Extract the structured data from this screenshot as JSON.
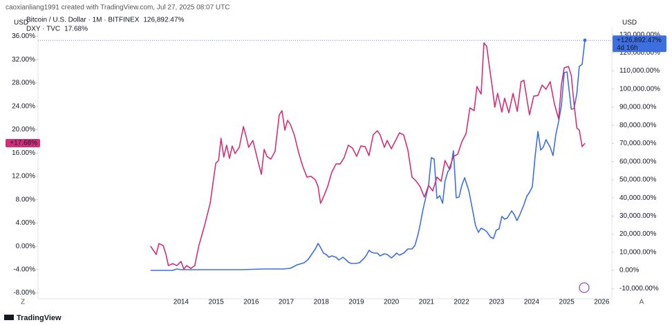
{
  "chart_data": {
    "type": "line",
    "header": "caoxianliang1991 created with TradingView.com, Jul 27, 2025 08:07 UTC",
    "y_label": "USD",
    "y2_label": "USD",
    "xlim": [
      2009.92,
      2026.19
    ],
    "xticks": [
      2014,
      2015,
      2016,
      2017,
      2018,
      2019,
      2020,
      2021,
      2022,
      2023,
      2024,
      2025,
      2026
    ],
    "ylim": [
      -9.0,
      36.9
    ],
    "yticks": [
      {
        "value": 36,
        "label": "36.00%"
      },
      {
        "value": 32,
        "label": "32.00%"
      },
      {
        "value": 28,
        "label": "28.00%"
      },
      {
        "value": 24,
        "label": "24.00%"
      },
      {
        "value": 20,
        "label": "20.00%"
      },
      {
        "value": 16,
        "label": "16.00%"
      },
      {
        "value": 12,
        "label": "12.00%"
      },
      {
        "value": 8,
        "label": "8.00%"
      },
      {
        "value": 4,
        "label": "4.00%"
      },
      {
        "value": 0,
        "label": "0.00%"
      },
      {
        "value": -4,
        "label": "-4.00%"
      },
      {
        "value": -8,
        "label": "-8.00%"
      }
    ],
    "y2lim": [
      -15640,
      131960
    ],
    "y2ticks": [
      {
        "value": 130000,
        "label": "130,000.00%"
      },
      {
        "value": 120000,
        "label": "120,000.00%"
      },
      {
        "value": 110000,
        "label": "110,000.00%"
      },
      {
        "value": 100000,
        "label": "100,000.00%"
      },
      {
        "value": 90000,
        "label": "90,000.00%"
      },
      {
        "value": 80000,
        "label": "80,000.00%"
      },
      {
        "value": 70000,
        "label": "70,000.00%"
      },
      {
        "value": 60000,
        "label": "60,000.00%"
      },
      {
        "value": 50000,
        "label": "50,000.00%"
      },
      {
        "value": 40000,
        "label": "40,000.00%"
      },
      {
        "value": 30000,
        "label": "30,000.00%"
      },
      {
        "value": 20000,
        "label": "20,000.00%"
      },
      {
        "value": 10000,
        "label": "10,000.00%"
      },
      {
        "value": 0,
        "label": "0.00%"
      },
      {
        "value": -10000,
        "label": "-10,000.00%"
      }
    ],
    "grid": false,
    "series": [
      {
        "name": "Bitcoin / U.S. Dollar · 1M · BITFINEX",
        "color": "#3d6fe0",
        "axis": "y2",
        "legend_value": "126,892.47%",
        "price_tag": "+126,892.47%",
        "countdown": "4d 16h",
        "x": [
          2013.13,
          2013.76,
          2013.88,
          2014.0,
          2014.75,
          2015.74,
          2016.33,
          2016.92,
          2017.12,
          2017.31,
          2017.51,
          2017.63,
          2017.75,
          2017.83,
          2017.91,
          2017.98,
          2018.06,
          2018.14,
          2018.22,
          2018.3,
          2018.42,
          2018.5,
          2018.62,
          2018.69,
          2018.77,
          2018.85,
          2018.97,
          2019.09,
          2019.21,
          2019.29,
          2019.36,
          2019.44,
          2019.52,
          2019.6,
          2019.68,
          2019.8,
          2019.88,
          2020.0,
          2020.07,
          2020.15,
          2020.23,
          2020.35,
          2020.47,
          2020.59,
          2020.67,
          2020.75,
          2020.82,
          2020.9,
          2020.98,
          2021.06,
          2021.14,
          2021.22,
          2021.3,
          2021.38,
          2021.46,
          2021.53,
          2021.61,
          2021.69,
          2021.77,
          2021.85,
          2021.93,
          2022.01,
          2022.09,
          2022.21,
          2022.32,
          2022.4,
          2022.48,
          2022.56,
          2022.64,
          2022.72,
          2022.83,
          2022.91,
          2022.99,
          2023.07,
          2023.15,
          2023.23,
          2023.31,
          2023.43,
          2023.5,
          2023.58,
          2023.66,
          2023.78,
          2023.86,
          2023.94,
          2024.02,
          2024.1,
          2024.18,
          2024.26,
          2024.33,
          2024.41,
          2024.53,
          2024.61,
          2024.69,
          2024.77,
          2024.85,
          2024.93,
          2025.01,
          2025.05,
          2025.13,
          2025.21,
          2025.29,
          2025.36,
          2025.44,
          2025.52
        ],
        "values": [
          0,
          0,
          760,
          380,
          380,
          380,
          760,
          760,
          1140,
          3050,
          4200,
          6100,
          9540,
          11820,
          14880,
          12590,
          9540,
          8770,
          7250,
          8010,
          7250,
          5720,
          7250,
          6100,
          4580,
          3810,
          3810,
          4200,
          6480,
          8390,
          11060,
          9920,
          9540,
          9540,
          8010,
          9150,
          8770,
          6870,
          8010,
          9540,
          8390,
          9540,
          11820,
          11820,
          13730,
          19070,
          25170,
          33560,
          40050,
          46910,
          62170,
          61410,
          39660,
          41190,
          37000,
          49200,
          54540,
          56450,
          65980,
          40050,
          40430,
          46910,
          51110,
          43860,
          32800,
          24790,
          20980,
          23270,
          22500,
          21360,
          18310,
          17540,
          22120,
          22880,
          29750,
          28220,
          28990,
          32800,
          30890,
          27460,
          30510,
          36230,
          40810,
          43100,
          46150,
          62930,
          76660,
          66360,
          67890,
          72080,
          67890,
          63310,
          74750,
          82000,
          91150,
          109080,
          109460,
          102600,
          88860,
          89250,
          97640,
          112510,
          113650,
          126892.47
        ]
      },
      {
        "name": "DXY · TVC",
        "color": "#d0307a",
        "axis": "y",
        "legend_value": "17.68%",
        "price_tag": "+17.68%",
        "x": [
          2013.13,
          2013.29,
          2013.37,
          2013.49,
          2013.57,
          2013.64,
          2013.76,
          2013.88,
          2014.0,
          2014.08,
          2014.16,
          2014.28,
          2014.39,
          2014.51,
          2014.67,
          2014.83,
          2014.99,
          2015.07,
          2015.14,
          2015.22,
          2015.3,
          2015.38,
          2015.46,
          2015.54,
          2015.66,
          2015.78,
          2015.85,
          2015.93,
          2016.05,
          2016.17,
          2016.29,
          2016.37,
          2016.45,
          2016.56,
          2016.68,
          2016.8,
          2016.88,
          2016.96,
          2017.04,
          2017.12,
          2017.23,
          2017.35,
          2017.47,
          2017.59,
          2017.71,
          2017.83,
          2017.91,
          2017.98,
          2018.06,
          2018.18,
          2018.3,
          2018.42,
          2018.54,
          2018.65,
          2018.77,
          2018.89,
          2019.01,
          2019.13,
          2019.25,
          2019.36,
          2019.48,
          2019.6,
          2019.68,
          2019.8,
          2019.88,
          2020.0,
          2020.11,
          2020.23,
          2020.35,
          2020.47,
          2020.59,
          2020.71,
          2020.82,
          2020.94,
          2021.06,
          2021.18,
          2021.3,
          2021.42,
          2021.53,
          2021.65,
          2021.77,
          2021.89,
          2022.01,
          2022.13,
          2022.24,
          2022.36,
          2022.44,
          2022.56,
          2022.64,
          2022.72,
          2022.8,
          2022.88,
          2022.95,
          2023.03,
          2023.15,
          2023.23,
          2023.35,
          2023.47,
          2023.59,
          2023.7,
          2023.78,
          2023.86,
          2023.94,
          2024.06,
          2024.18,
          2024.3,
          2024.41,
          2024.53,
          2024.65,
          2024.77,
          2024.85,
          2024.93,
          2025.05,
          2025.13,
          2025.21,
          2025.29,
          2025.36,
          2025.44,
          2025.52
        ],
        "values": [
          0,
          -1.42,
          0.47,
          0.12,
          -1.42,
          -3.32,
          -2.97,
          -3.32,
          -2.61,
          -3.91,
          -3.32,
          -3.8,
          -3.32,
          0.12,
          3.56,
          7.35,
          14.23,
          14.71,
          18.51,
          15.3,
          17.32,
          15.07,
          17.2,
          15.9,
          16.96,
          20.52,
          18.98,
          16.96,
          18.15,
          15.18,
          12.34,
          16.61,
          15.42,
          14.95,
          16.25,
          22.54,
          23.25,
          19.93,
          21.59,
          20.88,
          19.1,
          16.13,
          13.76,
          11.86,
          11.98,
          11.39,
          10.2,
          7.35,
          8.42,
          10.2,
          12.69,
          14.12,
          14.12,
          15.18,
          17.32,
          16.84,
          15.42,
          17.2,
          17.08,
          15.54,
          19.1,
          19.81,
          19.1,
          16.96,
          18.15,
          16.73,
          18.03,
          19.45,
          19.1,
          16.49,
          11.86,
          11.15,
          10.2,
          8.42,
          10.44,
          9.49,
          11.86,
          11.15,
          14.71,
          13.29,
          15.42,
          15.78,
          17.91,
          19.34,
          23.72,
          23.25,
          27.4,
          26.1,
          34.88,
          34.28,
          30.61,
          27.16,
          23.84,
          26.22,
          23.01,
          25.39,
          22.89,
          26.22,
          23.13,
          28.23,
          28.47,
          25.39,
          22.54,
          25.74,
          25.86,
          27.64,
          26.93,
          28.23,
          24.44,
          21.83,
          27.76,
          30.61,
          30.84,
          29.3,
          24.44,
          20.28,
          19.93,
          17.08,
          17.68
        ]
      }
    ],
    "left_button": "Z",
    "right_button": "A",
    "brand": "TradingView"
  }
}
